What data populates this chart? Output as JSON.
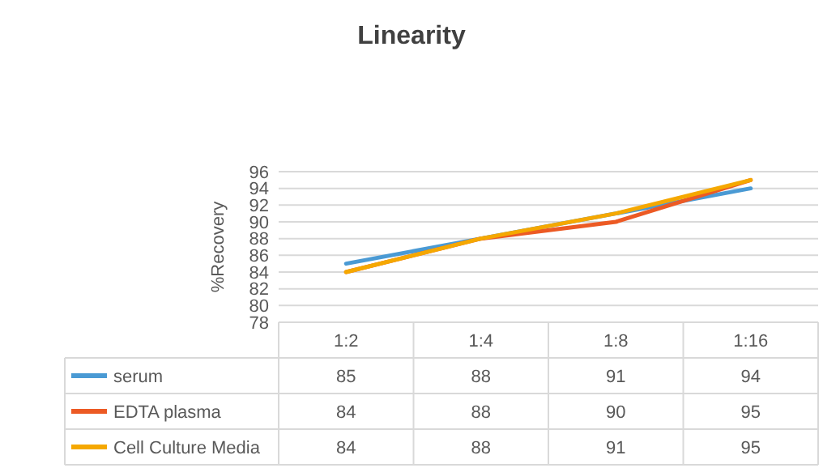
{
  "chart_data": {
    "type": "line",
    "title": "Linearity",
    "ylabel": "%Recovery",
    "categories": [
      "1:2",
      "1:4",
      "1:8",
      "1:16"
    ],
    "series": [
      {
        "name": "serum",
        "color": "#4a9ad4",
        "values": [
          85,
          88,
          91,
          94
        ]
      },
      {
        "name": "EDTA plasma",
        "color": "#ec5a24",
        "values": [
          84,
          88,
          90,
          95
        ]
      },
      {
        "name": "Cell Culture Media",
        "color": "#f5a800",
        "values": [
          84,
          88,
          91,
          95
        ]
      }
    ],
    "ylim": [
      78,
      96
    ],
    "yticks": [
      78,
      80,
      82,
      84,
      86,
      88,
      90,
      92,
      94,
      96
    ],
    "grid": "y",
    "legend": "bottom",
    "data_labels": true,
    "marker": "none",
    "line_style": "solid"
  }
}
